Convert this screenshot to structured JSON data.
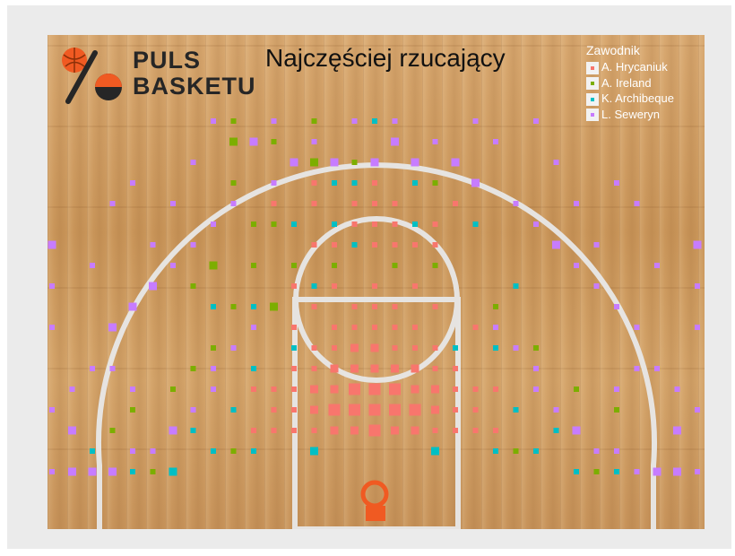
{
  "chart_data": {
    "type": "scatter",
    "title": "Najczęściej rzucający",
    "legend_title": "Zawodnik",
    "legend_position": "top-right",
    "series": [
      {
        "name": "A. Hrycaniuk",
        "color": "#f8766d",
        "points": [
          [
            0,
            3,
            3
          ],
          [
            -1,
            3,
            2
          ],
          [
            1,
            3,
            2
          ],
          [
            -2,
            3,
            2
          ],
          [
            2,
            3,
            2
          ],
          [
            -3,
            3,
            1
          ],
          [
            3,
            3,
            1
          ],
          [
            -4,
            3,
            1
          ],
          [
            4,
            3,
            1
          ],
          [
            -5,
            3,
            1
          ],
          [
            5,
            3,
            1
          ],
          [
            -6,
            3,
            1
          ],
          [
            6,
            3,
            1
          ],
          [
            0,
            4,
            3
          ],
          [
            -1,
            4,
            3
          ],
          [
            1,
            4,
            3
          ],
          [
            -2,
            4,
            3
          ],
          [
            2,
            4,
            3
          ],
          [
            -3,
            4,
            2
          ],
          [
            3,
            4,
            2
          ],
          [
            -4,
            4,
            1
          ],
          [
            4,
            4,
            1
          ],
          [
            -5,
            4,
            1
          ],
          [
            5,
            4,
            1
          ],
          [
            0,
            5,
            3
          ],
          [
            -1,
            5,
            3
          ],
          [
            1,
            5,
            3
          ],
          [
            -2,
            5,
            2
          ],
          [
            2,
            5,
            2
          ],
          [
            -3,
            5,
            2
          ],
          [
            3,
            5,
            2
          ],
          [
            -4,
            5,
            1
          ],
          [
            4,
            5,
            1
          ],
          [
            -5,
            5,
            1
          ],
          [
            5,
            5,
            1
          ],
          [
            -6,
            5,
            1
          ],
          [
            6,
            5,
            1
          ],
          [
            0,
            6,
            2
          ],
          [
            -1,
            6,
            2
          ],
          [
            1,
            6,
            2
          ],
          [
            -2,
            6,
            2
          ],
          [
            2,
            6,
            2
          ],
          [
            -3,
            6,
            1
          ],
          [
            3,
            6,
            1
          ],
          [
            -4,
            6,
            1
          ],
          [
            4,
            6,
            1
          ],
          [
            0,
            7,
            2
          ],
          [
            -1,
            7,
            2
          ],
          [
            1,
            7,
            1
          ],
          [
            -2,
            7,
            1
          ],
          [
            2,
            7,
            1
          ],
          [
            -3,
            7,
            1
          ],
          [
            3,
            7,
            1
          ],
          [
            0,
            8,
            1
          ],
          [
            -1,
            8,
            1
          ],
          [
            1,
            8,
            1
          ],
          [
            -2,
            8,
            1
          ],
          [
            2,
            8,
            1
          ],
          [
            -4,
            8,
            1
          ],
          [
            5,
            8,
            1
          ],
          [
            0,
            9,
            1
          ],
          [
            -1,
            9,
            1
          ],
          [
            1,
            9,
            1
          ],
          [
            3,
            9,
            1
          ],
          [
            -3,
            9,
            1
          ],
          [
            0,
            10,
            1
          ],
          [
            -2,
            10,
            1
          ],
          [
            2,
            10,
            1
          ],
          [
            -4,
            10,
            1
          ],
          [
            0,
            12,
            1
          ],
          [
            1,
            12,
            1
          ],
          [
            -1,
            12,
            1
          ],
          [
            2,
            12,
            1
          ],
          [
            -2,
            12,
            1
          ],
          [
            3,
            12,
            1
          ],
          [
            -3,
            12,
            1
          ],
          [
            0,
            13,
            1
          ],
          [
            1,
            13,
            1
          ],
          [
            -1,
            13,
            1
          ],
          [
            2,
            13,
            1
          ],
          [
            -2,
            13,
            1
          ],
          [
            3,
            13,
            1
          ],
          [
            -4,
            13,
            1
          ],
          [
            0,
            14,
            1
          ],
          [
            -1,
            14,
            1
          ],
          [
            1,
            14,
            1
          ],
          [
            -3,
            14,
            1
          ],
          [
            4,
            14,
            1
          ],
          [
            -5,
            14,
            1
          ],
          [
            0,
            15,
            1
          ],
          [
            2,
            15,
            1
          ],
          [
            -3,
            15,
            1
          ]
        ]
      },
      {
        "name": "A. Ireland",
        "color": "#7cae00",
        "points": [
          [
            -7,
            2,
            1
          ],
          [
            7,
            2,
            1
          ],
          [
            -11,
            1,
            1
          ],
          [
            11,
            1,
            1
          ],
          [
            -13,
            3,
            1
          ],
          [
            -12,
            4,
            1
          ],
          [
            -10,
            5,
            1
          ],
          [
            10,
            5,
            1
          ],
          [
            12,
            4,
            1
          ],
          [
            -9,
            6,
            1
          ],
          [
            -8,
            7,
            1
          ],
          [
            8,
            7,
            1
          ],
          [
            -6,
            8,
            1
          ],
          [
            -5,
            9,
            2
          ],
          [
            6,
            9,
            1
          ],
          [
            -7,
            9,
            1
          ],
          [
            -9,
            10,
            1
          ],
          [
            7,
            10,
            1
          ],
          [
            -8,
            11,
            2
          ],
          [
            -6,
            11,
            1
          ],
          [
            -4,
            11,
            1
          ],
          [
            3,
            11,
            1
          ],
          [
            -2,
            11,
            1
          ],
          [
            1,
            11,
            1
          ],
          [
            -6,
            13,
            1
          ],
          [
            -5,
            13,
            1
          ],
          [
            5,
            13,
            1
          ],
          [
            -7,
            15,
            1
          ],
          [
            -5,
            15,
            1
          ],
          [
            3,
            15,
            1
          ],
          [
            -2,
            16,
            1
          ],
          [
            -1,
            16,
            1
          ],
          [
            -3,
            16,
            2
          ],
          [
            -7,
            17,
            2
          ],
          [
            -5,
            17,
            1
          ],
          [
            -3,
            18,
            1
          ],
          [
            -2,
            19,
            1
          ],
          [
            4,
            19,
            1
          ],
          [
            -2,
            20,
            1
          ],
          [
            2,
            20,
            1
          ],
          [
            -6,
            19,
            2
          ],
          [
            -7,
            18,
            1
          ]
        ]
      },
      {
        "name": "K. Archibeque",
        "color": "#00bfc4",
        "points": [
          [
            -3,
            2,
            2
          ],
          [
            3,
            2,
            2
          ],
          [
            -6,
            2,
            1
          ],
          [
            6,
            2,
            1
          ],
          [
            -8,
            2,
            1
          ],
          [
            8,
            2,
            1
          ],
          [
            -10,
            1,
            2
          ],
          [
            10,
            1,
            1
          ],
          [
            -12,
            1,
            1
          ],
          [
            12,
            1,
            1
          ],
          [
            -9,
            3,
            1
          ],
          [
            9,
            3,
            1
          ],
          [
            -14,
            2,
            1
          ],
          [
            -7,
            4,
            1
          ],
          [
            7,
            4,
            1
          ],
          [
            -8,
            5,
            1
          ],
          [
            8,
            5,
            1
          ],
          [
            -6,
            6,
            1
          ],
          [
            -4,
            7,
            1
          ],
          [
            4,
            7,
            1
          ],
          [
            6,
            7,
            1
          ],
          [
            -6,
            9,
            1
          ],
          [
            -8,
            9,
            1
          ],
          [
            -3,
            10,
            1
          ],
          [
            7,
            10,
            1
          ],
          [
            -1,
            12,
            1
          ],
          [
            -2,
            13,
            1
          ],
          [
            2,
            13,
            1
          ],
          [
            -4,
            13,
            1
          ],
          [
            5,
            13,
            1
          ],
          [
            -1,
            15,
            1
          ],
          [
            -2,
            15,
            1
          ],
          [
            2,
            15,
            1
          ],
          [
            -4,
            16,
            1
          ],
          [
            4,
            16,
            1
          ],
          [
            -6,
            17,
            1
          ],
          [
            6,
            17,
            1
          ],
          [
            0,
            18,
            1
          ],
          [
            -1,
            19,
            1
          ],
          [
            1,
            19,
            1
          ]
        ]
      },
      {
        "name": "L. Seweryn",
        "color": "#c77cff",
        "points": [
          [
            -14,
            1,
            2
          ],
          [
            -15,
            1,
            2
          ],
          [
            -13,
            1,
            2
          ],
          [
            -12,
            2,
            1
          ],
          [
            -11,
            2,
            1
          ],
          [
            -10,
            3,
            2
          ],
          [
            -9,
            4,
            1
          ],
          [
            -8,
            5,
            1
          ],
          [
            -8,
            6,
            1
          ],
          [
            -7,
            7,
            1
          ],
          [
            -6,
            8,
            1
          ],
          [
            14,
            1,
            2
          ],
          [
            15,
            1,
            2
          ],
          [
            13,
            1,
            1
          ],
          [
            12,
            2,
            1
          ],
          [
            11,
            2,
            1
          ],
          [
            10,
            3,
            2
          ],
          [
            9,
            4,
            1
          ],
          [
            8,
            5,
            1
          ],
          [
            8,
            6,
            1
          ],
          [
            7,
            7,
            1
          ],
          [
            6,
            8,
            1
          ],
          [
            -15,
            3,
            2
          ],
          [
            -16,
            4,
            1
          ],
          [
            -15,
            5,
            1
          ],
          [
            -14,
            6,
            1
          ],
          [
            15,
            3,
            2
          ],
          [
            16,
            4,
            1
          ],
          [
            15,
            5,
            1
          ],
          [
            14,
            6,
            1
          ],
          [
            -13,
            8,
            2
          ],
          [
            -12,
            9,
            2
          ],
          [
            -11,
            10,
            2
          ],
          [
            -10,
            11,
            1
          ],
          [
            13,
            8,
            1
          ],
          [
            12,
            9,
            1
          ],
          [
            11,
            10,
            1
          ],
          [
            10,
            11,
            1
          ],
          [
            -9,
            12,
            1
          ],
          [
            -8,
            13,
            1
          ],
          [
            -7,
            14,
            1
          ],
          [
            -5,
            15,
            1
          ],
          [
            9,
            12,
            2
          ],
          [
            8,
            13,
            1
          ],
          [
            7,
            14,
            1
          ],
          [
            5,
            15,
            2
          ],
          [
            -4,
            16,
            2
          ],
          [
            -2,
            16,
            2
          ],
          [
            0,
            16,
            2
          ],
          [
            2,
            16,
            2
          ],
          [
            4,
            16,
            2
          ],
          [
            -6,
            17,
            2
          ],
          [
            -3,
            17,
            1
          ],
          [
            1,
            17,
            2
          ],
          [
            3,
            17,
            1
          ],
          [
            6,
            17,
            1
          ],
          [
            -8,
            18,
            1
          ],
          [
            -5,
            18,
            1
          ],
          [
            5,
            18,
            1
          ],
          [
            8,
            18,
            1
          ],
          [
            -1,
            18,
            1
          ],
          [
            1,
            18,
            1
          ],
          [
            0,
            19,
            1
          ],
          [
            2,
            19,
            1
          ],
          [
            -2,
            19,
            1
          ],
          [
            -5,
            19,
            1
          ],
          [
            5,
            19,
            1
          ],
          [
            0,
            20,
            1
          ],
          [
            -16,
            12,
            2
          ],
          [
            -17,
            11,
            1
          ],
          [
            -16,
            10,
            1
          ],
          [
            -14,
            11,
            1
          ],
          [
            16,
            12,
            2
          ],
          [
            17,
            11,
            1
          ],
          [
            16,
            10,
            1
          ],
          [
            14,
            11,
            1
          ],
          [
            -17,
            9,
            1
          ],
          [
            -16,
            8,
            1
          ],
          [
            -17,
            7,
            1
          ],
          [
            17,
            9,
            1
          ],
          [
            16,
            8,
            1
          ],
          [
            17,
            7,
            1
          ],
          [
            -13,
            6,
            1
          ],
          [
            -12,
            5,
            1
          ],
          [
            13,
            6,
            1
          ],
          [
            12,
            5,
            1
          ],
          [
            -17,
            2,
            1
          ],
          [
            17,
            2,
            1
          ],
          [
            -16,
            1,
            1
          ],
          [
            16,
            1,
            1
          ],
          [
            -11,
            12,
            1
          ],
          [
            -13,
            14,
            1
          ],
          [
            -12,
            15,
            1
          ],
          [
            -10,
            14,
            1
          ],
          [
            -9,
            16,
            1
          ],
          [
            11,
            12,
            1
          ],
          [
            13,
            14,
            1
          ],
          [
            12,
            15,
            1
          ],
          [
            10,
            14,
            1
          ],
          [
            9,
            16,
            1
          ]
        ]
      }
    ]
  },
  "logo": {
    "line1": "PULS",
    "line2": "BASKETU"
  }
}
